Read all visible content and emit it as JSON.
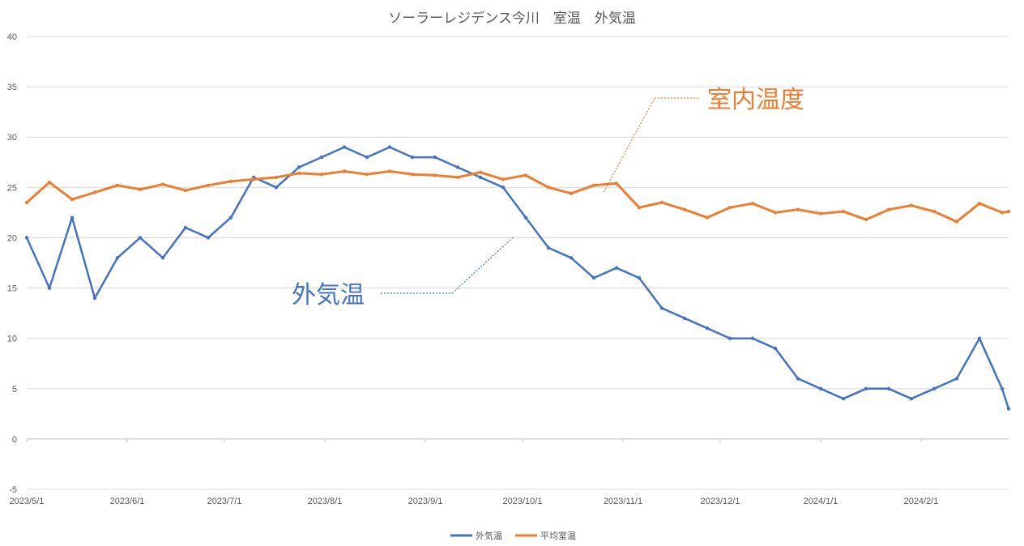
{
  "chart_data": {
    "type": "line",
    "title": "ソーラーレジデンス今川　室温　外気温",
    "xlabel": "",
    "ylabel": "",
    "x_range": [
      "2023-05-01",
      "2024-02-28"
    ],
    "ylim": [
      -5,
      40
    ],
    "y_ticks": [
      "40",
      "35",
      "30",
      "25",
      "20",
      "15",
      "10",
      "5",
      "0",
      "-5"
    ],
    "x_ticks": [
      {
        "date": "2023-05-01",
        "label": "2023/5/1"
      },
      {
        "date": "2023-06-01",
        "label": "2023/6/1"
      },
      {
        "date": "2023-07-01",
        "label": "2023/7/1"
      },
      {
        "date": "2023-08-01",
        "label": "2023/8/1"
      },
      {
        "date": "2023-09-01",
        "label": "2023/9/1"
      },
      {
        "date": "2023-10-01",
        "label": "2023/10/1"
      },
      {
        "date": "2023-11-01",
        "label": "2023/11/1"
      },
      {
        "date": "2023-12-01",
        "label": "2023/12/1"
      },
      {
        "date": "2024-01-01",
        "label": "2024/1/1"
      },
      {
        "date": "2024-02-01",
        "label": "2024/2/1"
      }
    ],
    "grid": true,
    "legend_position": "bottom",
    "series": [
      {
        "name": "外気温",
        "color": "#4472C4",
        "points": [
          [
            "2023-05-01",
            20
          ],
          [
            "2023-05-08",
            15
          ],
          [
            "2023-05-15",
            22
          ],
          [
            "2023-05-22",
            14
          ],
          [
            "2023-05-29",
            18
          ],
          [
            "2023-06-05",
            20
          ],
          [
            "2023-06-12",
            18
          ],
          [
            "2023-06-19",
            21
          ],
          [
            "2023-06-26",
            20
          ],
          [
            "2023-07-03",
            22
          ],
          [
            "2023-07-10",
            26
          ],
          [
            "2023-07-17",
            25
          ],
          [
            "2023-07-24",
            27
          ],
          [
            "2023-07-31",
            28
          ],
          [
            "2023-08-07",
            29
          ],
          [
            "2023-08-14",
            28
          ],
          [
            "2023-08-21",
            29
          ],
          [
            "2023-08-28",
            28
          ],
          [
            "2023-09-04",
            28
          ],
          [
            "2023-09-11",
            27
          ],
          [
            "2023-09-18",
            26
          ],
          [
            "2023-09-25",
            25
          ],
          [
            "2023-10-02",
            22
          ],
          [
            "2023-10-09",
            19
          ],
          [
            "2023-10-16",
            18
          ],
          [
            "2023-10-23",
            16
          ],
          [
            "2023-10-30",
            17
          ],
          [
            "2023-11-06",
            16
          ],
          [
            "2023-11-13",
            13
          ],
          [
            "2023-11-20",
            12
          ],
          [
            "2023-11-27",
            11
          ],
          [
            "2023-12-04",
            10
          ],
          [
            "2023-12-11",
            10
          ],
          [
            "2023-12-18",
            9
          ],
          [
            "2023-12-25",
            6
          ],
          [
            "2024-01-01",
            5
          ],
          [
            "2024-01-08",
            4
          ],
          [
            "2024-01-15",
            5
          ],
          [
            "2024-01-22",
            5
          ],
          [
            "2024-01-29",
            4
          ],
          [
            "2024-02-05",
            5
          ],
          [
            "2024-02-12",
            6
          ],
          [
            "2024-02-19",
            10
          ],
          [
            "2024-02-26",
            5
          ],
          [
            "2024-02-28",
            3
          ]
        ]
      },
      {
        "name": "平均室温",
        "color": "#ED7D31",
        "points": [
          [
            "2023-05-01",
            23.5
          ],
          [
            "2023-05-08",
            25.5
          ],
          [
            "2023-05-15",
            23.8
          ],
          [
            "2023-05-22",
            24.5
          ],
          [
            "2023-05-29",
            25.2
          ],
          [
            "2023-06-05",
            24.8
          ],
          [
            "2023-06-12",
            25.3
          ],
          [
            "2023-06-19",
            24.7
          ],
          [
            "2023-06-26",
            25.2
          ],
          [
            "2023-07-03",
            25.6
          ],
          [
            "2023-07-10",
            25.8
          ],
          [
            "2023-07-17",
            26.0
          ],
          [
            "2023-07-24",
            26.4
          ],
          [
            "2023-07-31",
            26.3
          ],
          [
            "2023-08-07",
            26.6
          ],
          [
            "2023-08-14",
            26.3
          ],
          [
            "2023-08-21",
            26.6
          ],
          [
            "2023-08-28",
            26.3
          ],
          [
            "2023-09-04",
            26.2
          ],
          [
            "2023-09-11",
            26.0
          ],
          [
            "2023-09-18",
            26.5
          ],
          [
            "2023-09-25",
            25.8
          ],
          [
            "2023-10-02",
            26.2
          ],
          [
            "2023-10-09",
            25.0
          ],
          [
            "2023-10-16",
            24.4
          ],
          [
            "2023-10-23",
            25.2
          ],
          [
            "2023-10-30",
            25.4
          ],
          [
            "2023-11-06",
            23.0
          ],
          [
            "2023-11-13",
            23.5
          ],
          [
            "2023-11-20",
            22.8
          ],
          [
            "2023-11-27",
            22.0
          ],
          [
            "2023-12-04",
            23.0
          ],
          [
            "2023-12-11",
            23.4
          ],
          [
            "2023-12-18",
            22.5
          ],
          [
            "2023-12-25",
            22.8
          ],
          [
            "2024-01-01",
            22.4
          ],
          [
            "2024-01-08",
            22.6
          ],
          [
            "2024-01-15",
            21.8
          ],
          [
            "2024-01-22",
            22.8
          ],
          [
            "2024-01-29",
            23.2
          ],
          [
            "2024-02-05",
            22.6
          ],
          [
            "2024-02-12",
            21.6
          ],
          [
            "2024-02-19",
            23.4
          ],
          [
            "2024-02-26",
            22.5
          ],
          [
            "2024-02-28",
            22.6
          ]
        ]
      }
    ],
    "annotations": [
      {
        "text": "外気温",
        "color": "#4472C4",
        "target_date": "2023-09-28",
        "target_value": 20
      },
      {
        "text": "室内温度",
        "color": "#ED7D31",
        "target_date": "2023-10-26",
        "target_value": 24.5
      }
    ]
  }
}
